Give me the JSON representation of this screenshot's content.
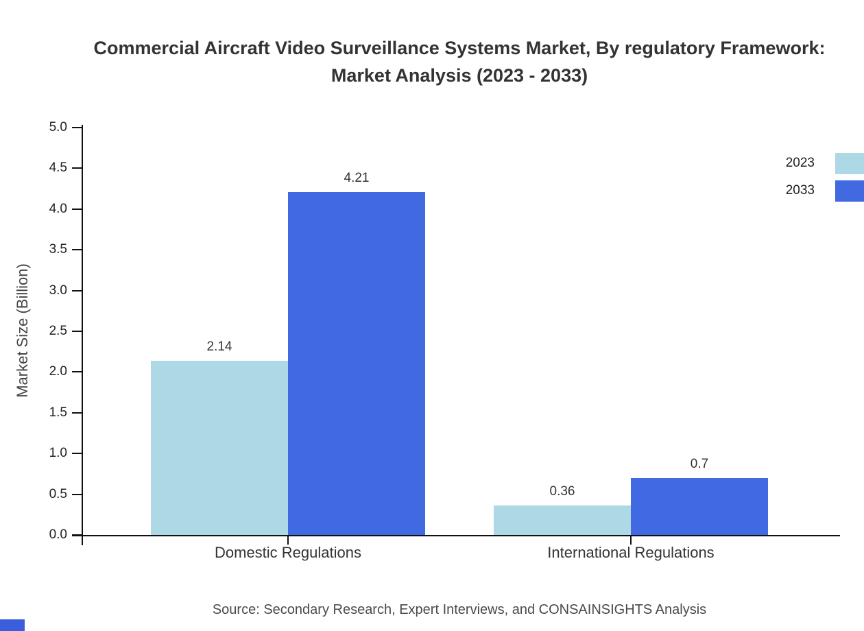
{
  "title_lines": [
    "Commercial Aircraft Video Surveillance Systems Market, By regulatory Framework:",
    "Market Analysis (2023 - 2033)"
  ],
  "source_note": "Source: Secondary Research, Expert Interviews, and CONSAINSIGHTS Analysis",
  "chart_data": {
    "type": "bar",
    "title": "Commercial Aircraft Video Surveillance Systems Market, By regulatory Framework: Market Analysis (2023 - 2033)",
    "categories": [
      "Domestic Regulations",
      "International Regulations"
    ],
    "series": [
      {
        "name": "2023",
        "color": "#add8e6",
        "values": [
          2.14,
          0.36
        ]
      },
      {
        "name": "2033",
        "color": "#4169e1",
        "values": [
          4.21,
          0.7
        ]
      }
    ],
    "xlabel": "",
    "ylabel": "Market Size (Billion)",
    "ylim": [
      0,
      5
    ],
    "ytick_step": 0.5,
    "yticks": [
      "0.0",
      "0.5",
      "1.0",
      "1.5",
      "2.0",
      "2.5",
      "3.0",
      "3.5",
      "4.0",
      "4.5",
      "5.0"
    ],
    "grid": false,
    "legend": {
      "position": "top-right",
      "entries": [
        "2023",
        "2033"
      ]
    }
  }
}
